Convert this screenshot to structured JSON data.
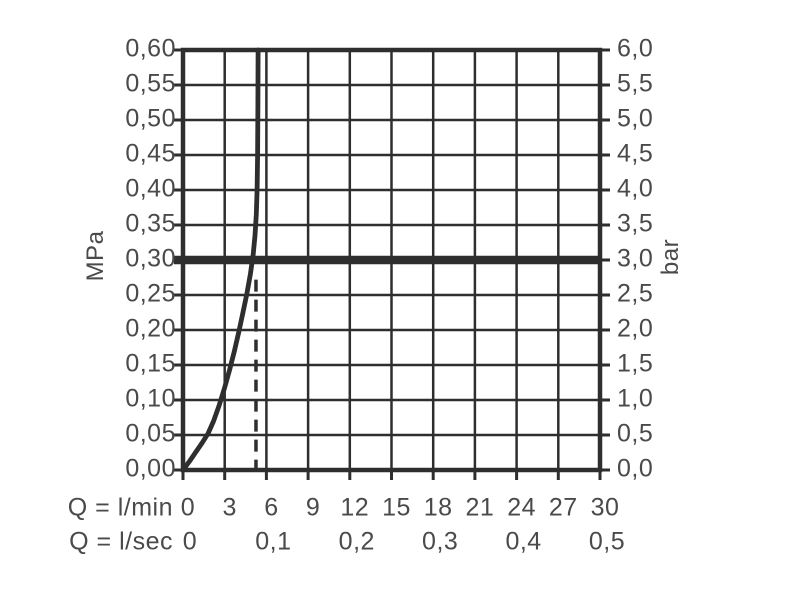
{
  "colors": {
    "line": "#2e2e2e",
    "text": "#4a4a4a",
    "background": "#ffffff"
  },
  "chart_data": {
    "type": "line",
    "title": "",
    "grid": true,
    "xlim_lmin": [
      0,
      30
    ],
    "ylim_mpa": [
      0,
      0.6
    ],
    "ylim_bar": [
      0,
      6
    ],
    "y_left": {
      "label": "MPa",
      "ticks": [
        {
          "mpa": 0.6,
          "label": "0,60"
        },
        {
          "mpa": 0.55,
          "label": "0,55"
        },
        {
          "mpa": 0.5,
          "label": "0,50"
        },
        {
          "mpa": 0.45,
          "label": "0,45"
        },
        {
          "mpa": 0.4,
          "label": "0,40"
        },
        {
          "mpa": 0.35,
          "label": "0,35"
        },
        {
          "mpa": 0.3,
          "label": "0,30"
        },
        {
          "mpa": 0.25,
          "label": "0,25"
        },
        {
          "mpa": 0.2,
          "label": "0,20"
        },
        {
          "mpa": 0.15,
          "label": "0,15"
        },
        {
          "mpa": 0.1,
          "label": "0,10"
        },
        {
          "mpa": 0.05,
          "label": "0,05"
        },
        {
          "mpa": 0.0,
          "label": "0,00"
        }
      ]
    },
    "y_right": {
      "label": "bar",
      "ticks": [
        {
          "bar": 6.0,
          "label": "6,0"
        },
        {
          "bar": 5.5,
          "label": "5,5"
        },
        {
          "bar": 5.0,
          "label": "5,0"
        },
        {
          "bar": 4.5,
          "label": "4,5"
        },
        {
          "bar": 4.0,
          "label": "4,0"
        },
        {
          "bar": 3.5,
          "label": "3,5"
        },
        {
          "bar": 3.0,
          "label": "3,0"
        },
        {
          "bar": 2.5,
          "label": "2,5"
        },
        {
          "bar": 2.0,
          "label": "2,0"
        },
        {
          "bar": 1.5,
          "label": "1,5"
        },
        {
          "bar": 1.0,
          "label": "1,0"
        },
        {
          "bar": 0.5,
          "label": "0,5"
        },
        {
          "bar": 0.0,
          "label": "0,0"
        }
      ]
    },
    "x_rows": [
      {
        "label": "Q = l/min",
        "ticks": [
          {
            "lmin": 0,
            "label": "0"
          },
          {
            "lmin": 3,
            "label": "3"
          },
          {
            "lmin": 6,
            "label": "6"
          },
          {
            "lmin": 9,
            "label": "9"
          },
          {
            "lmin": 12,
            "label": "12"
          },
          {
            "lmin": 15,
            "label": "15"
          },
          {
            "lmin": 18,
            "label": "18"
          },
          {
            "lmin": 21,
            "label": "21"
          },
          {
            "lmin": 24,
            "label": "24"
          },
          {
            "lmin": 27,
            "label": "27"
          },
          {
            "lmin": 30,
            "label": "30"
          }
        ]
      },
      {
        "label": "Q = l/sec",
        "ticks": [
          {
            "lmin": 0,
            "label": "0"
          },
          {
            "lmin": 6,
            "label": "0,1"
          },
          {
            "lmin": 12,
            "label": "0,2"
          },
          {
            "lmin": 18,
            "label": "0,3"
          },
          {
            "lmin": 24,
            "label": "0,4"
          },
          {
            "lmin": 30,
            "label": "0,5"
          }
        ]
      }
    ],
    "reference_line": {
      "mpa": 0.3,
      "bar": 3.0
    },
    "dashed_guide": {
      "lmin": 5.25,
      "from_mpa": 0.0,
      "to_mpa": 0.272
    },
    "series": [
      {
        "name": "flow-pressure-curve",
        "points_lmin_mpa": [
          [
            0.0,
            0.0
          ],
          [
            0.45,
            0.012
          ],
          [
            0.9,
            0.025
          ],
          [
            1.35,
            0.038
          ],
          [
            1.8,
            0.052
          ],
          [
            2.2,
            0.07
          ],
          [
            2.6,
            0.092
          ],
          [
            3.0,
            0.118
          ],
          [
            3.35,
            0.143
          ],
          [
            3.7,
            0.17
          ],
          [
            4.0,
            0.196
          ],
          [
            4.3,
            0.224
          ],
          [
            4.6,
            0.252
          ],
          [
            4.85,
            0.28
          ],
          [
            5.05,
            0.308
          ],
          [
            5.18,
            0.335
          ],
          [
            5.27,
            0.365
          ],
          [
            5.33,
            0.4
          ],
          [
            5.37,
            0.45
          ],
          [
            5.39,
            0.52
          ],
          [
            5.4,
            0.6
          ]
        ]
      }
    ]
  }
}
